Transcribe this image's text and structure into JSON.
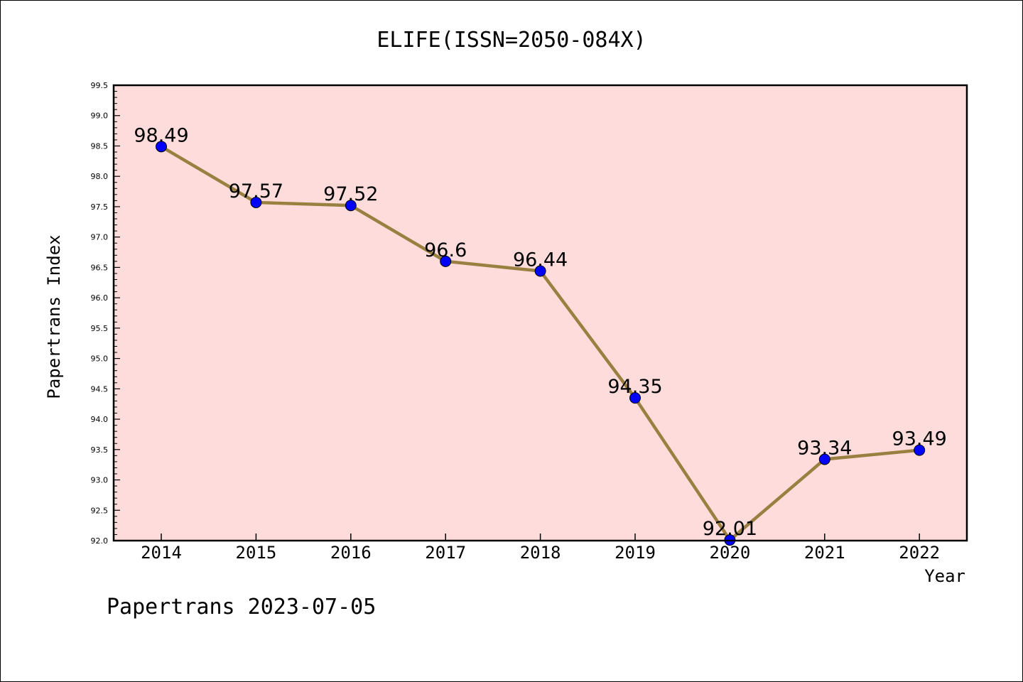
{
  "chart_data": {
    "type": "line",
    "title": "ELIFE(ISSN=2050-084X)",
    "xlabel": "Year",
    "ylabel": "Papertrans Index",
    "x": [
      "2014",
      "2015",
      "2016",
      "2017",
      "2018",
      "2019",
      "2020",
      "2021",
      "2022"
    ],
    "series": [
      {
        "values": [
          98.49,
          97.57,
          97.52,
          96.6,
          96.44,
          94.35,
          92.01,
          93.34,
          93.49
        ],
        "labels": [
          "98.49",
          "97.57",
          "97.52",
          "96.6",
          "96.44",
          "94.35",
          "92.01",
          "93.34",
          "93.49"
        ]
      }
    ],
    "ylim": [
      92.0,
      99.5
    ],
    "yticks": [
      "92.0",
      "92.5",
      "93.0",
      "93.5",
      "94.0",
      "94.5",
      "95.0",
      "95.5",
      "96.0",
      "96.5",
      "97.0",
      "97.5",
      "98.0",
      "98.5",
      "99.0",
      "99.5"
    ],
    "grid": false,
    "colors": {
      "plot_background": "#ffdcdc",
      "line": "#9a8040",
      "marker": "#0000ff"
    }
  },
  "footer": {
    "watermark": "Papertrans 2023-07-05"
  }
}
